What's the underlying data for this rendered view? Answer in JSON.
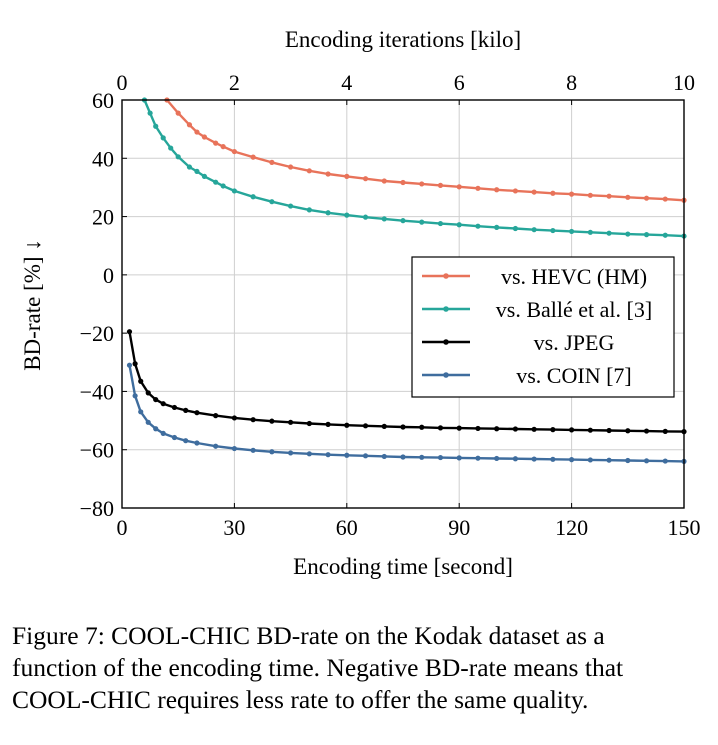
{
  "chart_data": {
    "type": "line",
    "xlabel": "Encoding time [second]",
    "x2label": "Encoding iterations [kilo]",
    "ylabel": "BD-rate [%] ↓",
    "xlim": [
      0,
      150
    ],
    "x2lim": [
      0,
      10
    ],
    "ylim": [
      -80,
      60
    ],
    "xticks": [
      0,
      30,
      60,
      90,
      120,
      150
    ],
    "x2ticks": [
      0,
      2,
      4,
      6,
      8,
      10
    ],
    "yticks": [
      -80,
      -60,
      -40,
      -20,
      0,
      20,
      40,
      60
    ],
    "grid": true,
    "legend_position": "center-right",
    "series": [
      {
        "name": "vs. HEVC (HM)",
        "color": "#e8735a",
        "x": [
          12,
          15,
          18,
          20,
          22,
          25,
          27,
          30,
          35,
          40,
          45,
          50,
          55,
          60,
          65,
          70,
          75,
          80,
          85,
          90,
          95,
          100,
          105,
          110,
          115,
          120,
          125,
          130,
          135,
          140,
          145,
          150
        ],
        "y": [
          60,
          55.5,
          51.5,
          49,
          47.3,
          45.2,
          44,
          42.3,
          40.4,
          38.6,
          37,
          35.7,
          34.6,
          33.8,
          33,
          32.2,
          31.7,
          31.2,
          30.7,
          30.2,
          29.7,
          29.2,
          28.8,
          28.4,
          28,
          27.7,
          27.3,
          27,
          26.6,
          26.3,
          26,
          25.6
        ]
      },
      {
        "name": "vs. Ballé et al. [3]",
        "color": "#26a69a",
        "x": [
          6,
          7.5,
          9,
          11,
          13,
          15,
          18,
          20,
          22,
          25,
          27,
          30,
          35,
          40,
          45,
          50,
          55,
          60,
          65,
          70,
          75,
          80,
          85,
          90,
          95,
          100,
          105,
          110,
          115,
          120,
          125,
          130,
          135,
          140,
          145,
          150
        ],
        "y": [
          60,
          55.5,
          51,
          47,
          43.5,
          40.5,
          37,
          35.5,
          33.8,
          31.8,
          30.5,
          28.8,
          26.8,
          25.1,
          23.6,
          22.3,
          21.3,
          20.5,
          19.8,
          19.2,
          18.6,
          18.1,
          17.6,
          17.2,
          16.7,
          16.3,
          15.9,
          15.5,
          15.2,
          14.9,
          14.6,
          14.3,
          14,
          13.8,
          13.6,
          13.3
        ]
      },
      {
        "name": "vs. JPEG",
        "color": "#000000",
        "x": [
          2,
          3.5,
          5,
          7,
          9,
          11,
          14,
          17,
          20,
          25,
          30,
          35,
          40,
          45,
          50,
          55,
          60,
          65,
          70,
          75,
          80,
          85,
          90,
          95,
          100,
          105,
          110,
          115,
          120,
          125,
          130,
          135,
          140,
          145,
          150
        ],
        "y": [
          -19.5,
          -30.5,
          -36.5,
          -40.5,
          -42.8,
          -44.2,
          -45.5,
          -46.5,
          -47.3,
          -48.3,
          -49.1,
          -49.7,
          -50.2,
          -50.6,
          -51,
          -51.3,
          -51.6,
          -51.8,
          -52,
          -52.2,
          -52.3,
          -52.5,
          -52.6,
          -52.7,
          -52.8,
          -52.9,
          -53,
          -53.1,
          -53.2,
          -53.3,
          -53.4,
          -53.5,
          -53.6,
          -53.7,
          -53.8
        ]
      },
      {
        "name": "vs. COIN [7]",
        "color": "#3f6d9e",
        "x": [
          2,
          3.5,
          5,
          7,
          9,
          11,
          14,
          17,
          20,
          25,
          30,
          35,
          40,
          45,
          50,
          55,
          60,
          65,
          70,
          75,
          80,
          85,
          90,
          95,
          100,
          105,
          110,
          115,
          120,
          125,
          130,
          135,
          140,
          145,
          150
        ],
        "y": [
          -31,
          -41.5,
          -47,
          -50.6,
          -52.8,
          -54.4,
          -55.8,
          -56.9,
          -57.7,
          -58.8,
          -59.6,
          -60.2,
          -60.7,
          -61.1,
          -61.4,
          -61.7,
          -61.9,
          -62.1,
          -62.3,
          -62.5,
          -62.6,
          -62.7,
          -62.8,
          -62.9,
          -63,
          -63.1,
          -63.2,
          -63.3,
          -63.4,
          -63.5,
          -63.6,
          -63.7,
          -63.8,
          -63.9,
          -64
        ]
      }
    ]
  },
  "caption": {
    "line1": "Figure 7: COOL-CHIC BD-rate on the Kodak dataset as a",
    "line2": "function of the encoding time. Negative BD-rate means that",
    "line3": "COOL-CHIC requires less rate to offer the same quality."
  }
}
